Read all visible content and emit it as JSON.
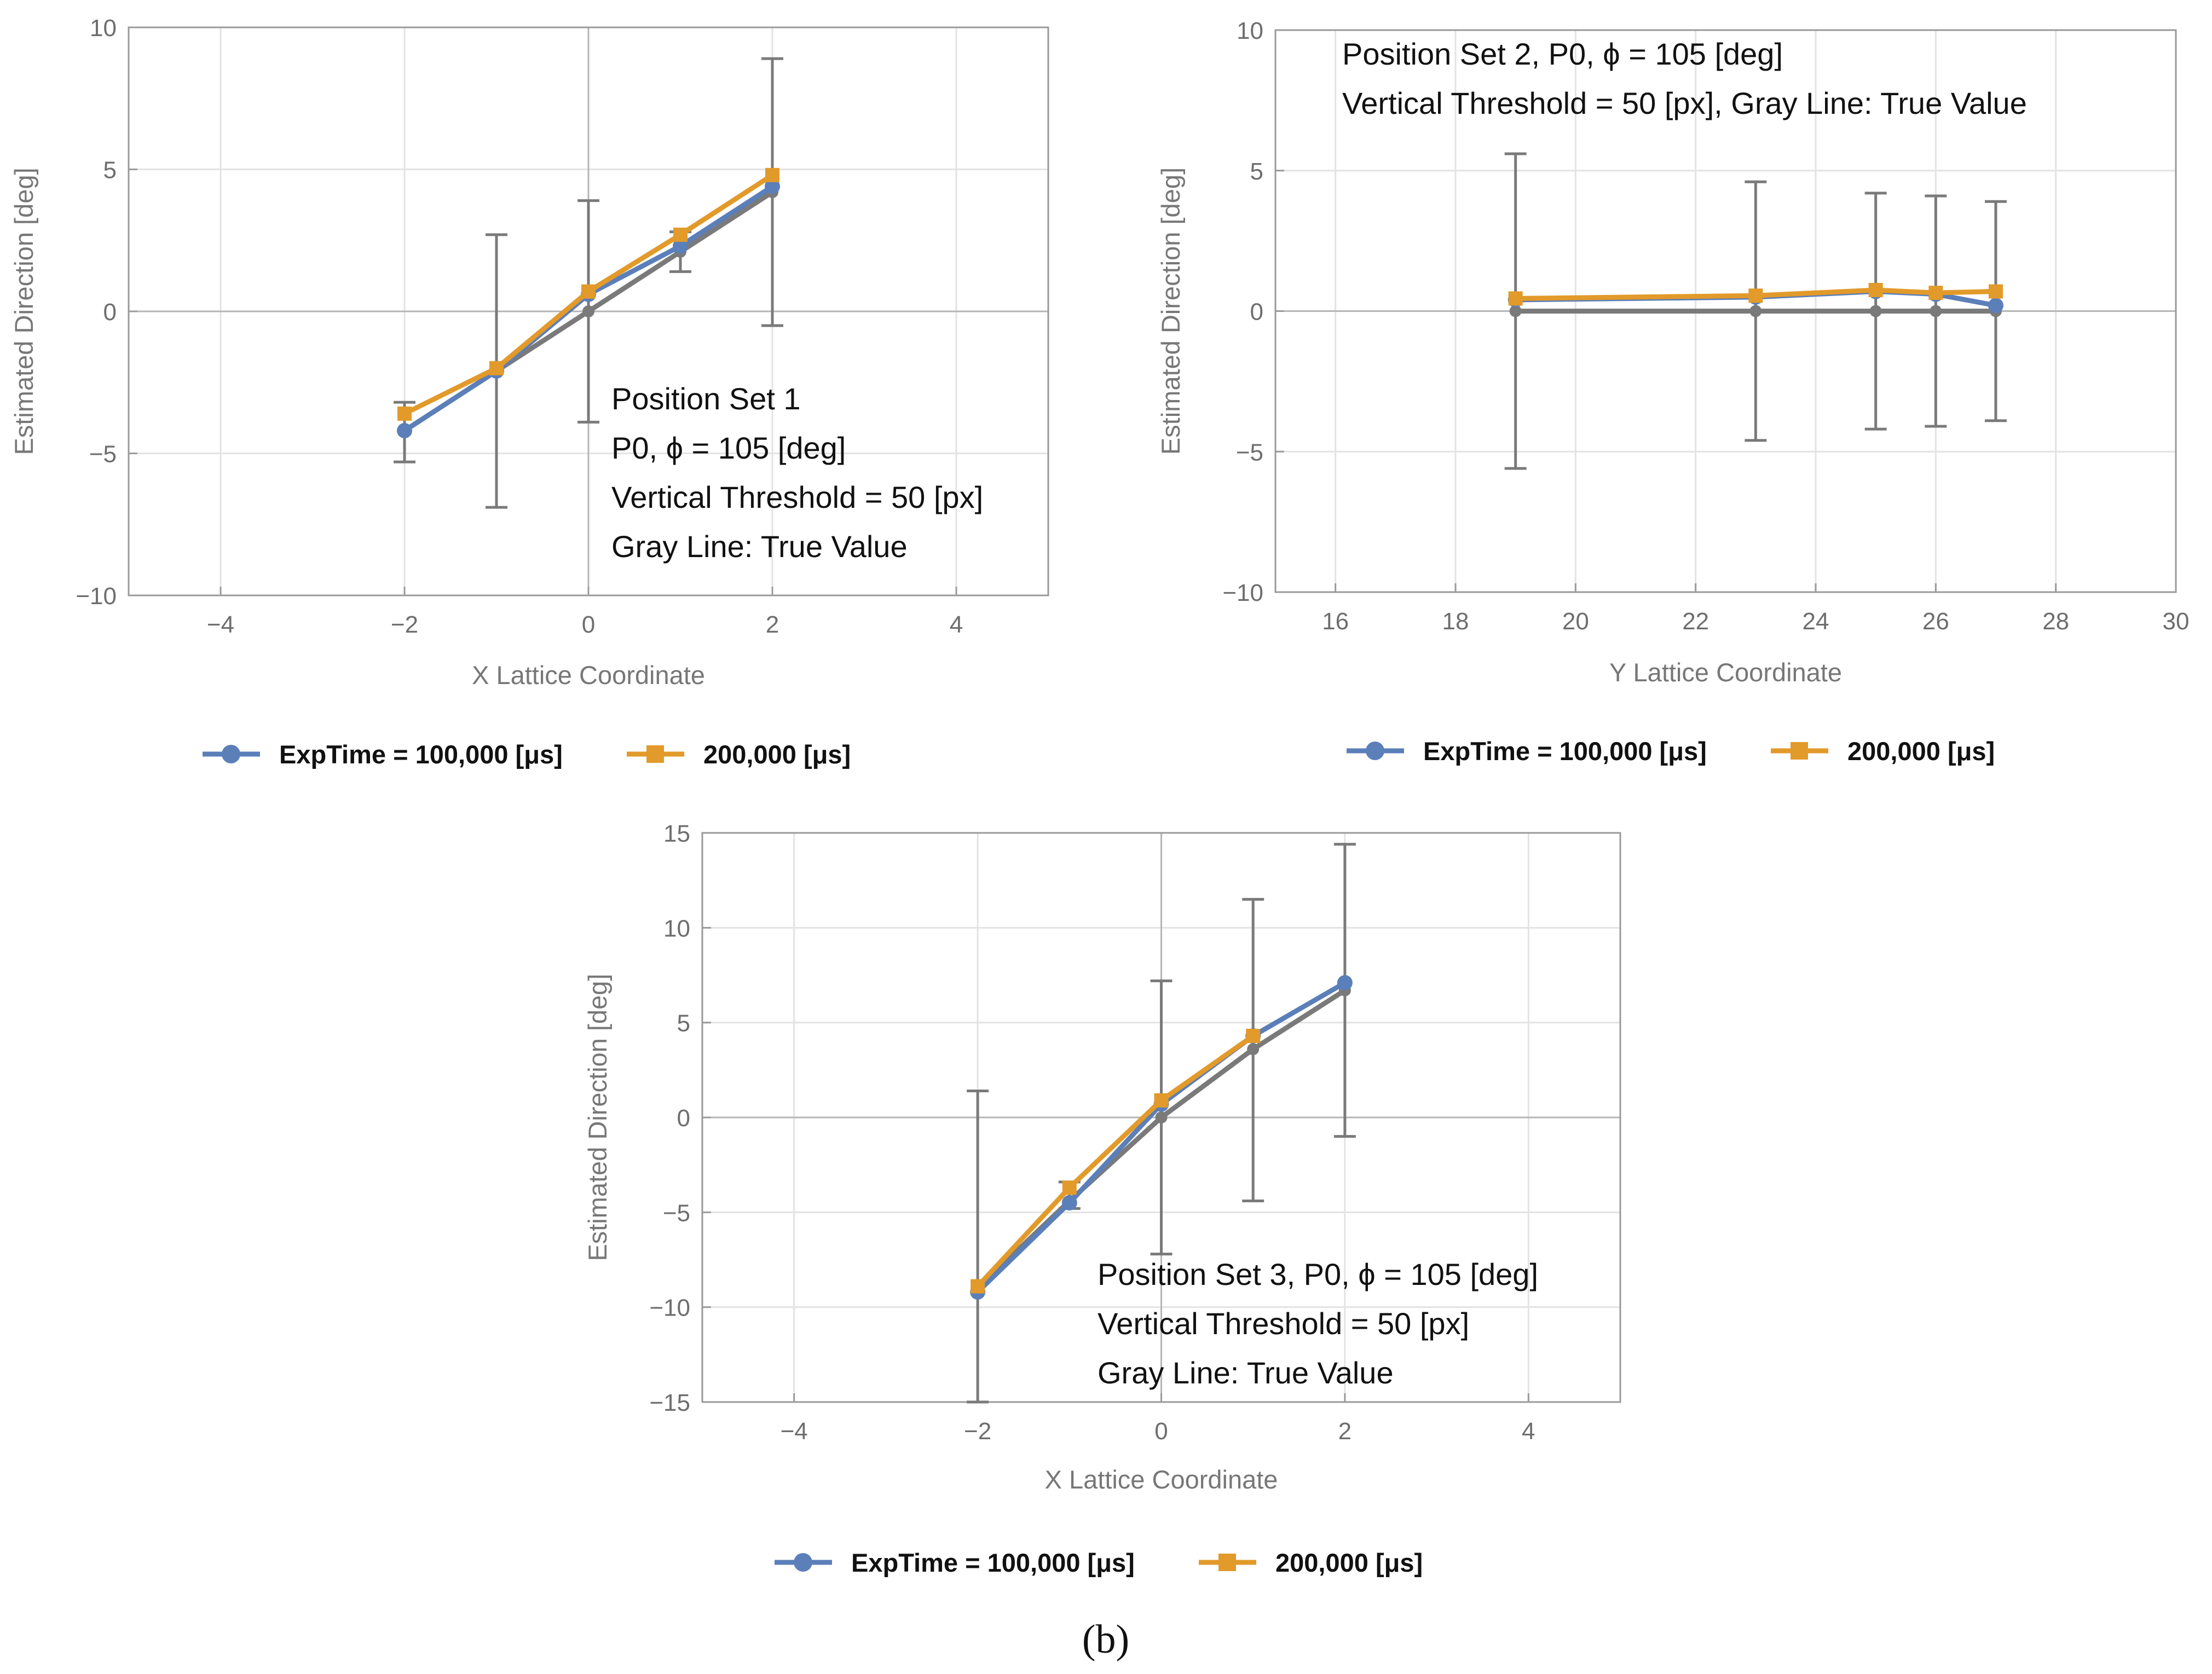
{
  "chart_data": [
    {
      "type": "line",
      "xlabel": "X Lattice Coordinate",
      "ylabel": "Estimated Direction [deg]",
      "xlim": [
        -5,
        5
      ],
      "ylim": [
        -10,
        10
      ],
      "xticks": [
        -4,
        -2,
        0,
        2,
        4
      ],
      "xtick_labels": [
        "−4",
        "−2",
        "0",
        "2",
        "4"
      ],
      "yticks": [
        -10,
        -5,
        0,
        5,
        10
      ],
      "ytick_labels": [
        "−10",
        "−5",
        "0",
        "5",
        "10"
      ],
      "grid": true,
      "annotation": [
        "Position Set 1",
        "P0, ϕ = 105 [deg]",
        "Vertical Threshold = 50 [px]",
        "Gray Line: True Value"
      ],
      "true_value": {
        "name": "True Value",
        "x": [
          -2,
          -1,
          0,
          1,
          2
        ],
        "y": [
          -4.2,
          -2.1,
          0,
          2.1,
          4.2
        ]
      },
      "error_bars": [
        {
          "x": -2,
          "low": -5.3,
          "high": -3.2
        },
        {
          "x": -1,
          "low": -6.9,
          "high": 2.7
        },
        {
          "x": 0,
          "low": -3.9,
          "high": 3.9
        },
        {
          "x": 1,
          "low": 1.4,
          "high": 2.8
        },
        {
          "x": 2,
          "low": -0.5,
          "high": 8.9
        }
      ],
      "series": [
        {
          "name": "ExpTime = 100,000 [μs]",
          "x": [
            -2,
            -1,
            0,
            1,
            2
          ],
          "y": [
            -4.2,
            -2.1,
            0.6,
            2.3,
            4.4
          ]
        },
        {
          "name": "200,000 [μs]",
          "x": [
            -2,
            -1,
            0,
            1,
            2
          ],
          "y": [
            -3.6,
            -2.0,
            0.7,
            2.7,
            4.8
          ]
        }
      ],
      "legend": [
        "ExpTime = 100,000 [μs]",
        "200,000 [μs]"
      ]
    },
    {
      "type": "line",
      "xlabel": "Y Lattice Coordinate",
      "ylabel": "Estimated Direction [deg]",
      "xlim": [
        15,
        30
      ],
      "ylim": [
        -10,
        10
      ],
      "xticks": [
        16,
        18,
        20,
        22,
        24,
        26,
        28,
        30
      ],
      "xtick_labels": [
        "16",
        "18",
        "20",
        "22",
        "24",
        "26",
        "28",
        "30"
      ],
      "yticks": [
        -10,
        -5,
        0,
        5,
        10
      ],
      "ytick_labels": [
        "−10",
        "−5",
        "0",
        "5",
        "10"
      ],
      "grid": true,
      "annotation": [
        "Position Set 2, P0, ϕ = 105 [deg]",
        "Vertical Threshold = 50 [px], Gray Line: True Value"
      ],
      "true_value": {
        "name": "True Value",
        "x": [
          19,
          23,
          25,
          26,
          27
        ],
        "y": [
          0,
          0,
          0,
          0,
          0
        ]
      },
      "error_bars": [
        {
          "x": 19,
          "low": -5.6,
          "high": 5.6
        },
        {
          "x": 23,
          "low": -4.6,
          "high": 4.6
        },
        {
          "x": 25,
          "low": -4.2,
          "high": 4.2
        },
        {
          "x": 26,
          "low": -4.1,
          "high": 4.1
        },
        {
          "x": 27,
          "low": -3.9,
          "high": 3.9
        }
      ],
      "series": [
        {
          "name": "ExpTime = 100,000 [μs]",
          "x": [
            19,
            23,
            25,
            26,
            27
          ],
          "y": [
            0.4,
            0.5,
            0.7,
            0.6,
            0.2
          ]
        },
        {
          "name": "200,000 [μs]",
          "x": [
            19,
            23,
            25,
            26,
            27
          ],
          "y": [
            0.45,
            0.55,
            0.75,
            0.65,
            0.7
          ]
        }
      ],
      "legend": [
        "ExpTime = 100,000 [μs]",
        "200,000 [μs]"
      ]
    },
    {
      "type": "line",
      "xlabel": "X Lattice Coordinate",
      "ylabel": "Estimated Direction [deg]",
      "xlim": [
        -5,
        5
      ],
      "ylim": [
        -15,
        15
      ],
      "xticks": [
        -4,
        -2,
        0,
        2,
        4
      ],
      "xtick_labels": [
        "−4",
        "−2",
        "0",
        "2",
        "4"
      ],
      "yticks": [
        -15,
        -10,
        -5,
        0,
        5,
        10,
        15
      ],
      "ytick_labels": [
        "−15",
        "−10",
        "−5",
        "0",
        "5",
        "10",
        "15"
      ],
      "grid": true,
      "annotation": [
        "Position Set 3, P0, ϕ = 105 [deg]",
        "Vertical Threshold = 50 [px]",
        "Gray Line: True Value"
      ],
      "true_value": {
        "name": "True Value",
        "x": [
          -2,
          -1,
          0,
          1,
          2
        ],
        "y": [
          -9.0,
          -4.4,
          0,
          3.6,
          6.7
        ]
      },
      "error_bars": [
        {
          "x": -2,
          "low": -15,
          "high": 1.4
        },
        {
          "x": -1,
          "low": -4.8,
          "high": -3.4
        },
        {
          "x": 0,
          "low": -7.2,
          "high": 7.2
        },
        {
          "x": 1,
          "low": -4.4,
          "high": 11.5
        },
        {
          "x": 2,
          "low": -1.0,
          "high": 14.4
        }
      ],
      "series": [
        {
          "name": "ExpTime = 100,000 [μs]",
          "x": [
            -2,
            -1,
            0,
            1,
            2
          ],
          "y": [
            -9.2,
            -4.5,
            0.7,
            4.3,
            7.1
          ]
        },
        {
          "name": "200,000 [μs]",
          "x": [
            -2,
            -1,
            0,
            1,
            2
          ],
          "y": [
            -8.9,
            -3.7,
            0.9,
            4.3,
            null
          ]
        }
      ],
      "legend": [
        "ExpTime = 100,000 [μs]",
        "200,000 [μs]"
      ]
    }
  ],
  "caption": "(b)",
  "colors": {
    "blue": "#5b7fb9",
    "orange": "#e29a2a",
    "gray": "#7a7a7a",
    "grid": "#e3e3e3",
    "frame": "#9a9a9a"
  }
}
